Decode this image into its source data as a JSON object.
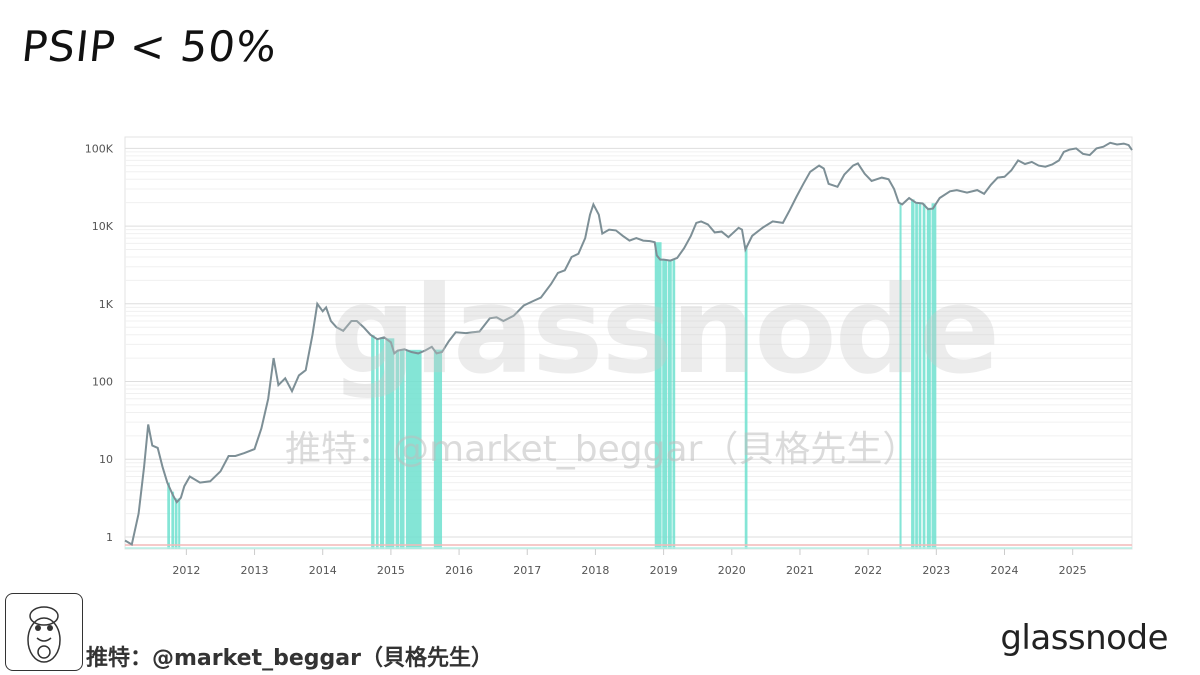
{
  "title": "PSIP < 50%",
  "watermark": {
    "logo": "glassnode",
    "handle": "推特：@market_beggar（貝格先生）"
  },
  "footer": {
    "handle": "推特：@market_beggar（貝格先生）",
    "brand": "glassnode"
  },
  "avatar_icon": "cartoon-avatar-icon",
  "colors": {
    "price_line": "#7d8f96",
    "highlight": "#6fe0cf",
    "grid": "#e8e8e8",
    "baseline": "#f4b9b9"
  },
  "chart_data": {
    "type": "line",
    "title": "",
    "xlabel": "",
    "ylabel": "",
    "y_scale": "log",
    "ylim": [
      0.7,
      140000
    ],
    "y_ticks": [
      {
        "value": 1,
        "label": "1"
      },
      {
        "value": 10,
        "label": "10"
      },
      {
        "value": 100,
        "label": "100"
      },
      {
        "value": 1000,
        "label": "1K"
      },
      {
        "value": 10000,
        "label": "10K"
      },
      {
        "value": 100000,
        "label": "100K"
      }
    ],
    "xlim": [
      2011.1,
      2025.87
    ],
    "x_ticks": [
      "2012",
      "2013",
      "2014",
      "2015",
      "2016",
      "2017",
      "2018",
      "2019",
      "2020",
      "2021",
      "2022",
      "2023",
      "2024",
      "2025"
    ],
    "grid": true,
    "series": [
      {
        "values": [
          [
            2011.1,
            0.9
          ],
          [
            2011.2,
            0.8
          ],
          [
            2011.3,
            2
          ],
          [
            2011.38,
            8
          ],
          [
            2011.44,
            28
          ],
          [
            2011.5,
            15
          ],
          [
            2011.58,
            14
          ],
          [
            2011.65,
            8
          ],
          [
            2011.72,
            5
          ],
          [
            2011.8,
            3.5
          ],
          [
            2011.86,
            2.8
          ],
          [
            2011.92,
            3.2
          ],
          [
            2011.97,
            4.5
          ],
          [
            2012.05,
            6
          ],
          [
            2012.2,
            5
          ],
          [
            2012.35,
            5.2
          ],
          [
            2012.5,
            7
          ],
          [
            2012.62,
            11
          ],
          [
            2012.72,
            11
          ],
          [
            2012.85,
            12
          ],
          [
            2013.0,
            13.5
          ],
          [
            2013.1,
            25
          ],
          [
            2013.2,
            60
          ],
          [
            2013.28,
            200
          ],
          [
            2013.35,
            90
          ],
          [
            2013.45,
            110
          ],
          [
            2013.55,
            75
          ],
          [
            2013.65,
            120
          ],
          [
            2013.75,
            140
          ],
          [
            2013.85,
            400
          ],
          [
            2013.92,
            1000
          ],
          [
            2014.0,
            800
          ],
          [
            2014.05,
            900
          ],
          [
            2014.12,
            600
          ],
          [
            2014.2,
            500
          ],
          [
            2014.3,
            450
          ],
          [
            2014.42,
            600
          ],
          [
            2014.5,
            600
          ],
          [
            2014.6,
            500
          ],
          [
            2014.7,
            400
          ],
          [
            2014.8,
            350
          ],
          [
            2014.9,
            370
          ],
          [
            2015.0,
            320
          ],
          [
            2015.05,
            230
          ],
          [
            2015.1,
            250
          ],
          [
            2015.2,
            260
          ],
          [
            2015.3,
            240
          ],
          [
            2015.4,
            230
          ],
          [
            2015.5,
            250
          ],
          [
            2015.6,
            280
          ],
          [
            2015.67,
            230
          ],
          [
            2015.75,
            240
          ],
          [
            2015.85,
            330
          ],
          [
            2015.95,
            430
          ],
          [
            2016.1,
            420
          ],
          [
            2016.3,
            440
          ],
          [
            2016.45,
            650
          ],
          [
            2016.55,
            670
          ],
          [
            2016.65,
            600
          ],
          [
            2016.8,
            700
          ],
          [
            2016.95,
            950
          ],
          [
            2017.1,
            1100
          ],
          [
            2017.2,
            1200
          ],
          [
            2017.35,
            1800
          ],
          [
            2017.45,
            2500
          ],
          [
            2017.55,
            2700
          ],
          [
            2017.65,
            4000
          ],
          [
            2017.75,
            4400
          ],
          [
            2017.85,
            7000
          ],
          [
            2017.92,
            14000
          ],
          [
            2017.97,
            19000
          ],
          [
            2018.05,
            14000
          ],
          [
            2018.1,
            8000
          ],
          [
            2018.2,
            9000
          ],
          [
            2018.3,
            8800
          ],
          [
            2018.4,
            7500
          ],
          [
            2018.5,
            6500
          ],
          [
            2018.6,
            7000
          ],
          [
            2018.7,
            6500
          ],
          [
            2018.8,
            6400
          ],
          [
            2018.87,
            6200
          ],
          [
            2018.9,
            4200
          ],
          [
            2018.95,
            3700
          ],
          [
            2019.0,
            3700
          ],
          [
            2019.1,
            3600
          ],
          [
            2019.2,
            3900
          ],
          [
            2019.3,
            5200
          ],
          [
            2019.4,
            7500
          ],
          [
            2019.48,
            11000
          ],
          [
            2019.55,
            11500
          ],
          [
            2019.65,
            10500
          ],
          [
            2019.75,
            8300
          ],
          [
            2019.85,
            8500
          ],
          [
            2019.95,
            7200
          ],
          [
            2020.1,
            9500
          ],
          [
            2020.15,
            9000
          ],
          [
            2020.2,
            5000
          ],
          [
            2020.3,
            7500
          ],
          [
            2020.45,
            9500
          ],
          [
            2020.6,
            11500
          ],
          [
            2020.75,
            11000
          ],
          [
            2020.85,
            16000
          ],
          [
            2020.95,
            24000
          ],
          [
            2021.05,
            35000
          ],
          [
            2021.15,
            50000
          ],
          [
            2021.28,
            60000
          ],
          [
            2021.35,
            55000
          ],
          [
            2021.42,
            35000
          ],
          [
            2021.55,
            32000
          ],
          [
            2021.65,
            46000
          ],
          [
            2021.78,
            60000
          ],
          [
            2021.85,
            64000
          ],
          [
            2021.95,
            47000
          ],
          [
            2022.05,
            38000
          ],
          [
            2022.2,
            42000
          ],
          [
            2022.3,
            40000
          ],
          [
            2022.38,
            30000
          ],
          [
            2022.45,
            20000
          ],
          [
            2022.5,
            19000
          ],
          [
            2022.6,
            23000
          ],
          [
            2022.7,
            20000
          ],
          [
            2022.8,
            19500
          ],
          [
            2022.88,
            16500
          ],
          [
            2022.95,
            16800
          ],
          [
            2023.05,
            23000
          ],
          [
            2023.2,
            28000
          ],
          [
            2023.3,
            29000
          ],
          [
            2023.45,
            27000
          ],
          [
            2023.6,
            29000
          ],
          [
            2023.7,
            26000
          ],
          [
            2023.8,
            34000
          ],
          [
            2023.9,
            42000
          ],
          [
            2024.0,
            43000
          ],
          [
            2024.1,
            52000
          ],
          [
            2024.2,
            70000
          ],
          [
            2024.3,
            63000
          ],
          [
            2024.4,
            67000
          ],
          [
            2024.5,
            60000
          ],
          [
            2024.6,
            58000
          ],
          [
            2024.7,
            62000
          ],
          [
            2024.8,
            70000
          ],
          [
            2024.87,
            90000
          ],
          [
            2024.95,
            96000
          ],
          [
            2025.05,
            100000
          ],
          [
            2025.15,
            85000
          ],
          [
            2025.25,
            82000
          ],
          [
            2025.35,
            100000
          ],
          [
            2025.45,
            105000
          ],
          [
            2025.55,
            118000
          ],
          [
            2025.65,
            112000
          ],
          [
            2025.75,
            115000
          ],
          [
            2025.82,
            110000
          ],
          [
            2025.87,
            95000
          ]
        ]
      }
    ],
    "highlight_periods": [
      [
        2011.72,
        2011.76
      ],
      [
        2011.78,
        2011.82
      ],
      [
        2011.83,
        2011.87
      ],
      [
        2011.88,
        2011.91
      ],
      [
        2014.71,
        2014.76
      ],
      [
        2014.78,
        2014.82
      ],
      [
        2014.84,
        2014.9
      ],
      [
        2014.92,
        2015.05
      ],
      [
        2015.07,
        2015.12
      ],
      [
        2015.13,
        2015.2
      ],
      [
        2015.22,
        2015.45
      ],
      [
        2015.63,
        2015.75
      ],
      [
        2018.87,
        2018.97
      ],
      [
        2018.98,
        2019.05
      ],
      [
        2019.06,
        2019.12
      ],
      [
        2019.13,
        2019.17
      ],
      [
        2020.19,
        2020.23
      ],
      [
        2022.46,
        2022.49
      ],
      [
        2022.63,
        2022.68
      ],
      [
        2022.69,
        2022.73
      ],
      [
        2022.74,
        2022.78
      ],
      [
        2022.8,
        2022.84
      ],
      [
        2022.86,
        2022.92
      ],
      [
        2022.93,
        2023.0
      ]
    ]
  }
}
